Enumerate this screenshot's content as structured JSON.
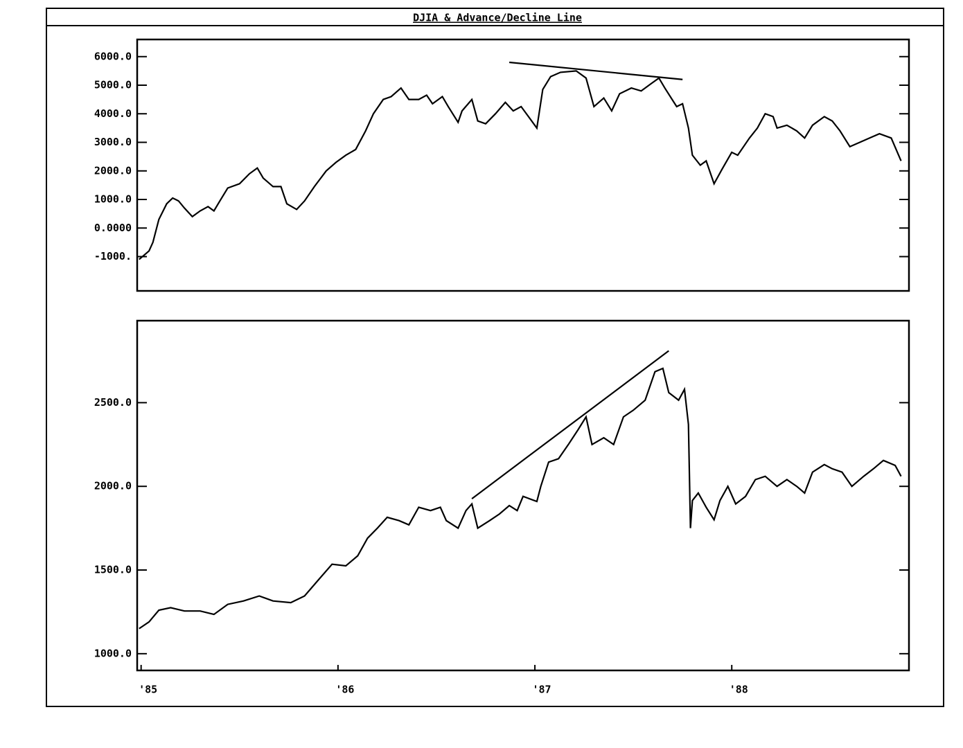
{
  "title": "DJIA & Advance/Decline Line",
  "chart_data": [
    {
      "type": "line",
      "color": "#000000",
      "xlim": [
        1984.98,
        1988.9
      ],
      "ylim": [
        -2200,
        6600
      ],
      "yticks": [
        {
          "value": 6000,
          "label": "6000.0"
        },
        {
          "value": 5000,
          "label": "5000.0"
        },
        {
          "value": 4000,
          "label": "4000.0"
        },
        {
          "value": 3000,
          "label": "3000.0"
        },
        {
          "value": 2000,
          "label": "2000.0"
        },
        {
          "value": 1000,
          "label": "1000.0"
        },
        {
          "value": 0,
          "label": "0.0000"
        },
        {
          "value": -1000,
          "label": "-1000."
        }
      ],
      "x": [
        1984.99,
        1985.04,
        1985.06,
        1985.09,
        1985.13,
        1985.16,
        1985.19,
        1985.22,
        1985.26,
        1985.3,
        1985.34,
        1985.37,
        1985.4,
        1985.44,
        1985.5,
        1985.55,
        1985.59,
        1985.62,
        1985.67,
        1985.71,
        1985.74,
        1985.79,
        1985.83,
        1985.88,
        1985.94,
        1985.99,
        1986.04,
        1986.09,
        1986.14,
        1986.18,
        1986.23,
        1986.27,
        1986.32,
        1986.36,
        1986.41,
        1986.45,
        1986.48,
        1986.53,
        1986.56,
        1986.61,
        1986.63,
        1986.68,
        1986.71,
        1986.75,
        1986.8,
        1986.85,
        1986.89,
        1986.93,
        1987.01,
        1987.04,
        1987.08,
        1987.13,
        1987.21,
        1987.26,
        1987.3,
        1987.35,
        1987.39,
        1987.43,
        1987.49,
        1987.54,
        1987.59,
        1987.63,
        1987.66,
        1987.72,
        1987.75,
        1987.78,
        1987.8,
        1987.84,
        1987.87,
        1987.91,
        1987.95,
        1988.0,
        1988.03,
        1988.09,
        1988.13,
        1988.17,
        1988.21,
        1988.23,
        1988.28,
        1988.33,
        1988.37,
        1988.41,
        1988.47,
        1988.51,
        1988.55,
        1988.6,
        1988.65,
        1988.7,
        1988.75,
        1988.81,
        1988.86
      ],
      "values": [
        -1100,
        -800,
        -500,
        300,
        850,
        1050,
        950,
        700,
        400,
        600,
        750,
        600,
        950,
        1400,
        1550,
        1900,
        2100,
        1750,
        1450,
        1450,
        850,
        650,
        950,
        1450,
        2000,
        2300,
        2550,
        2750,
        3400,
        4000,
        4500,
        4600,
        4900,
        4500,
        4500,
        4650,
        4350,
        4600,
        4250,
        3700,
        4100,
        4500,
        3750,
        3650,
        4000,
        4400,
        4100,
        4250,
        3500,
        4850,
        5300,
        5450,
        5500,
        5250,
        4250,
        4550,
        4100,
        4700,
        4900,
        4800,
        5050,
        5250,
        4900,
        4250,
        4350,
        3500,
        2550,
        2200,
        2350,
        1550,
        2050,
        2650,
        2550,
        3150,
        3500,
        4000,
        3900,
        3500,
        3600,
        3400,
        3150,
        3600,
        3900,
        3750,
        3400,
        2850,
        3000,
        3150,
        3300,
        3150,
        2350
      ],
      "trendline": {
        "x": [
          1986.87,
          1987.75
        ],
        "values": [
          5800,
          5200
        ]
      }
    },
    {
      "type": "line",
      "color": "#000000",
      "xlim": [
        1984.98,
        1988.9
      ],
      "ylim": [
        900,
        2990
      ],
      "yticks": [
        {
          "value": 2500,
          "label": "2500.0"
        },
        {
          "value": 2000,
          "label": "2000.0"
        },
        {
          "value": 1500,
          "label": "1500.0"
        },
        {
          "value": 1000,
          "label": "1000.0"
        }
      ],
      "xticks": [
        {
          "value": 1985,
          "label": "'85"
        },
        {
          "value": 1986,
          "label": "'86"
        },
        {
          "value": 1987,
          "label": "'87"
        },
        {
          "value": 1988,
          "label": "'88"
        }
      ],
      "x": [
        1984.99,
        1985.04,
        1985.09,
        1985.15,
        1985.22,
        1985.3,
        1985.37,
        1985.44,
        1985.52,
        1985.6,
        1985.67,
        1985.76,
        1985.83,
        1985.9,
        1985.97,
        1986.04,
        1986.1,
        1986.15,
        1986.2,
        1986.25,
        1986.31,
        1986.36,
        1986.41,
        1986.47,
        1986.52,
        1986.55,
        1986.61,
        1986.65,
        1986.68,
        1986.71,
        1986.77,
        1986.82,
        1986.87,
        1986.91,
        1986.94,
        1987.01,
        1987.03,
        1987.07,
        1987.12,
        1987.17,
        1987.22,
        1987.26,
        1987.29,
        1987.35,
        1987.4,
        1987.45,
        1987.5,
        1987.56,
        1987.61,
        1987.65,
        1987.68,
        1987.73,
        1987.76,
        1987.78,
        1987.79,
        1987.8,
        1987.83,
        1987.87,
        1987.91,
        1987.94,
        1987.98,
        1988.02,
        1988.07,
        1988.12,
        1988.17,
        1988.23,
        1988.28,
        1988.33,
        1988.37,
        1988.41,
        1988.47,
        1988.51,
        1988.56,
        1988.61,
        1988.67,
        1988.72,
        1988.77,
        1988.83,
        1988.86
      ],
      "values": [
        1150,
        1190,
        1260,
        1275,
        1255,
        1255,
        1235,
        1295,
        1315,
        1345,
        1315,
        1305,
        1345,
        1440,
        1535,
        1525,
        1585,
        1690,
        1750,
        1815,
        1795,
        1770,
        1875,
        1855,
        1875,
        1795,
        1750,
        1855,
        1895,
        1750,
        1795,
        1835,
        1885,
        1855,
        1940,
        1910,
        2000,
        2145,
        2165,
        2250,
        2340,
        2415,
        2250,
        2290,
        2250,
        2415,
        2455,
        2515,
        2685,
        2705,
        2560,
        2515,
        2580,
        2370,
        1750,
        1915,
        1960,
        1875,
        1800,
        1915,
        2000,
        1895,
        1940,
        2040,
        2060,
        2000,
        2040,
        2000,
        1960,
        2085,
        2130,
        2105,
        2085,
        2000,
        2060,
        2105,
        2155,
        2125,
        2060
      ],
      "trendline": {
        "x": [
          1986.68,
          1987.68
        ],
        "values": [
          1926,
          2810
        ]
      }
    }
  ]
}
